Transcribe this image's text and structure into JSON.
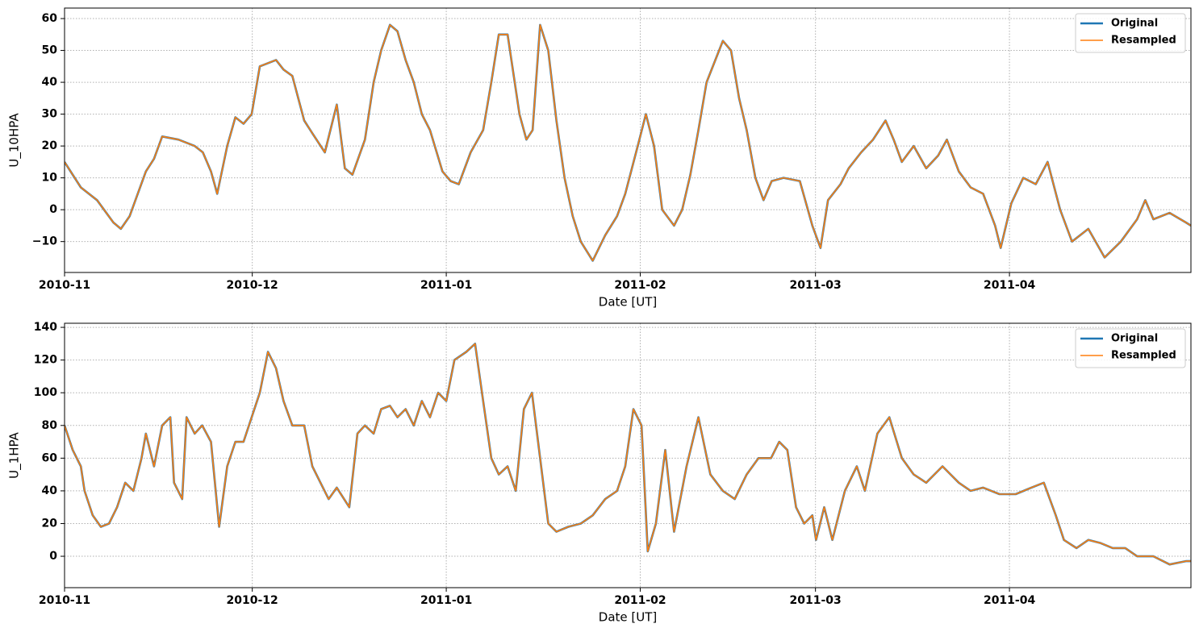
{
  "chart_data": [
    {
      "type": "line",
      "xlabel": "Date [UT]",
      "ylabel": "U_10HPA",
      "grid": true,
      "legend": "upper right",
      "xlim": [
        0,
        180
      ],
      "ylim": [
        -19.7,
        63.3
      ],
      "xticks": [
        {
          "value": 0,
          "label": "2010-11"
        },
        {
          "value": 30,
          "label": "2010-12"
        },
        {
          "value": 61,
          "label": "2011-01"
        },
        {
          "value": 92,
          "label": "2011-02"
        },
        {
          "value": 120,
          "label": "2011-03"
        },
        {
          "value": 151,
          "label": "2011-04"
        }
      ],
      "yticks": [
        {
          "value": -10,
          "label": "−10"
        },
        0,
        10,
        20,
        30,
        40,
        50,
        60
      ],
      "x": [
        0,
        2.6,
        5.2,
        7.8,
        9,
        10.4,
        11.7,
        13,
        14.3,
        15.6,
        18.2,
        20.8,
        22.1,
        23.4,
        24.4,
        26,
        27.3,
        28.6,
        29.9,
        31.2,
        33.8,
        35,
        36.4,
        38.3,
        39.6,
        41.6,
        43.5,
        44.8,
        46,
        48,
        49.4,
        50.6,
        52,
        53.2,
        54.5,
        55.8,
        57.1,
        58.4,
        60.4,
        61.7,
        63,
        64.9,
        66.9,
        68.2,
        69.4,
        70.8,
        72.7,
        73.8,
        74.8,
        76,
        77.3,
        78.6,
        79.9,
        81.2,
        82.5,
        84.4,
        86.4,
        88.3,
        89.6,
        91.6,
        92.9,
        94.2,
        95.5,
        97.4,
        98.7,
        100,
        101.3,
        102.6,
        104,
        105.2,
        106.5,
        107.8,
        109,
        110.4,
        111.7,
        113,
        114.9,
        117.5,
        119.5,
        120.8,
        122,
        124,
        125.3,
        127.3,
        129.2,
        131.2,
        132.5,
        133.8,
        135.7,
        137.7,
        139.6,
        141,
        142.9,
        144.8,
        146.8,
        148.7,
        149.6,
        151.3,
        153.2,
        155.2,
        157.1,
        159.1,
        161,
        163.6,
        166.2,
        168.8,
        171.4,
        172.7,
        174,
        176.6,
        179.2,
        180
      ],
      "series": [
        {
          "name": "Original",
          "color": "#1f77b4",
          "values": [
            15,
            7,
            3,
            -4,
            -6,
            -2,
            5,
            12,
            16,
            23,
            22,
            20,
            18,
            12,
            5,
            20,
            29,
            27,
            30,
            45,
            47,
            44,
            42,
            28,
            24,
            18,
            33,
            13,
            11,
            22,
            40,
            50,
            58,
            56,
            47,
            40,
            30,
            25,
            12,
            9,
            8,
            18,
            25,
            40,
            55,
            55,
            30,
            22,
            25,
            58,
            50,
            28,
            10,
            -2,
            -10,
            -16,
            -8,
            -2,
            5,
            20,
            30,
            20,
            0,
            -5,
            0,
            11,
            25,
            40,
            47,
            53,
            50,
            35,
            25,
            10,
            3,
            9,
            10,
            9,
            -5,
            -12,
            3,
            8,
            13,
            18,
            22,
            28,
            22,
            15,
            20,
            13,
            17,
            22,
            12,
            7,
            5,
            -5,
            -12,
            2,
            10,
            8,
            15,
            0,
            -10,
            -6,
            -15,
            -10,
            -3,
            3,
            -3,
            -1,
            -4,
            -5
          ]
        },
        {
          "name": "Resampled",
          "color": "#ff7f0e",
          "values": [
            15,
            7,
            3,
            -4,
            -6,
            -2,
            5,
            12,
            16,
            23,
            22,
            20,
            18,
            12,
            5,
            20,
            29,
            27,
            30,
            45,
            47,
            44,
            42,
            28,
            24,
            18,
            33,
            13,
            11,
            22,
            40,
            50,
            58,
            56,
            47,
            40,
            30,
            25,
            12,
            9,
            8,
            18,
            25,
            40,
            55,
            55,
            30,
            22,
            25,
            58,
            50,
            28,
            10,
            -2,
            -10,
            -16,
            -8,
            -2,
            5,
            20,
            30,
            20,
            0,
            -5,
            0,
            11,
            25,
            40,
            47,
            53,
            50,
            35,
            25,
            10,
            3,
            9,
            10,
            9,
            -5,
            -12,
            3,
            8,
            13,
            18,
            22,
            28,
            22,
            15,
            20,
            13,
            17,
            22,
            12,
            7,
            5,
            -5,
            -12,
            2,
            10,
            8,
            15,
            0,
            -10,
            -6,
            -15,
            -10,
            -3,
            3,
            -3,
            -1,
            -4,
            -5
          ]
        }
      ]
    },
    {
      "type": "line",
      "xlabel": "Date [UT]",
      "ylabel": "U_1HPA",
      "grid": true,
      "legend": "upper right",
      "xlim": [
        0,
        180
      ],
      "ylim": [
        -19.2,
        142.5
      ],
      "xticks": [
        {
          "value": 0,
          "label": "2010-11"
        },
        {
          "value": 30,
          "label": "2010-12"
        },
        {
          "value": 61,
          "label": "2011-01"
        },
        {
          "value": 92,
          "label": "2011-02"
        },
        {
          "value": 120,
          "label": "2011-03"
        },
        {
          "value": 151,
          "label": "2011-04"
        }
      ],
      "yticks": [
        0,
        20,
        40,
        60,
        80,
        100,
        120,
        140
      ],
      "x": [
        0,
        1.3,
        2.6,
        3.2,
        4.5,
        5.8,
        7.1,
        8.4,
        9.7,
        11,
        12.3,
        13,
        14.3,
        15.6,
        16.9,
        17.5,
        18.8,
        19.5,
        20.8,
        22,
        23.4,
        24.7,
        26,
        27.3,
        28.6,
        29.9,
        31.2,
        32.5,
        33.8,
        35,
        36.4,
        38.3,
        39.6,
        40.9,
        42.2,
        43.5,
        45.5,
        46.8,
        48,
        49.4,
        50.6,
        52,
        53.2,
        54.5,
        55.8,
        57.1,
        58.4,
        59.7,
        61,
        62.3,
        64.2,
        65.6,
        66.9,
        68.2,
        69.4,
        70.8,
        72.1,
        73.4,
        74.7,
        76,
        77.3,
        78.6,
        80.5,
        82.5,
        84.4,
        86.4,
        88.3,
        89.6,
        90.9,
        92.2,
        93.2,
        94.5,
        96,
        97.4,
        99.4,
        101.3,
        103.2,
        105.2,
        107.1,
        109,
        110.9,
        112.9,
        114.2,
        115.5,
        116.9,
        118.2,
        119.5,
        120.1,
        121.4,
        122.7,
        124.7,
        126.6,
        127.9,
        129.9,
        131.8,
        133.8,
        135.7,
        137.7,
        140.3,
        142.9,
        144.8,
        146.8,
        149.4,
        152,
        154.5,
        156.5,
        158.4,
        159.7,
        161.7,
        163.6,
        165.6,
        167.5,
        169.5,
        171.4,
        174,
        176.6,
        179.2,
        180
      ],
      "series": [
        {
          "name": "Original",
          "color": "#1f77b4",
          "values": [
            80,
            65,
            55,
            40,
            25,
            18,
            20,
            30,
            45,
            40,
            60,
            75,
            55,
            80,
            85,
            45,
            35,
            85,
            75,
            80,
            70,
            18,
            55,
            70,
            70,
            85,
            100,
            125,
            115,
            95,
            80,
            80,
            55,
            45,
            35,
            42,
            30,
            75,
            80,
            75,
            90,
            92,
            85,
            90,
            80,
            95,
            85,
            100,
            95,
            120,
            125,
            130,
            95,
            60,
            50,
            55,
            40,
            90,
            100,
            60,
            20,
            15,
            18,
            20,
            25,
            35,
            40,
            55,
            90,
            80,
            3,
            20,
            65,
            15,
            55,
            85,
            50,
            40,
            35,
            50,
            60,
            60,
            70,
            65,
            30,
            20,
            25,
            10,
            30,
            10,
            40,
            55,
            40,
            75,
            85,
            60,
            50,
            45,
            55,
            45,
            40,
            42,
            38,
            38,
            42,
            45,
            25,
            10,
            5,
            10,
            8,
            5,
            5,
            0,
            0,
            -5,
            -3,
            -3
          ]
        },
        {
          "name": "Resampled",
          "color": "#ff7f0e",
          "values": [
            80,
            65,
            55,
            40,
            25,
            18,
            20,
            30,
            45,
            40,
            60,
            75,
            55,
            80,
            85,
            45,
            35,
            85,
            75,
            80,
            70,
            18,
            55,
            70,
            70,
            85,
            100,
            125,
            115,
            95,
            80,
            80,
            55,
            45,
            35,
            42,
            30,
            75,
            80,
            75,
            90,
            92,
            85,
            90,
            80,
            95,
            85,
            100,
            95,
            120,
            125,
            130,
            95,
            60,
            50,
            55,
            40,
            90,
            100,
            60,
            20,
            15,
            18,
            20,
            25,
            35,
            40,
            55,
            90,
            80,
            3,
            20,
            65,
            15,
            55,
            85,
            50,
            40,
            35,
            50,
            60,
            60,
            70,
            65,
            30,
            20,
            25,
            10,
            30,
            10,
            40,
            55,
            40,
            75,
            85,
            60,
            50,
            45,
            55,
            45,
            40,
            42,
            38,
            38,
            42,
            45,
            25,
            10,
            5,
            10,
            8,
            5,
            5,
            0,
            0,
            -5,
            -3,
            -3
          ]
        }
      ]
    }
  ]
}
